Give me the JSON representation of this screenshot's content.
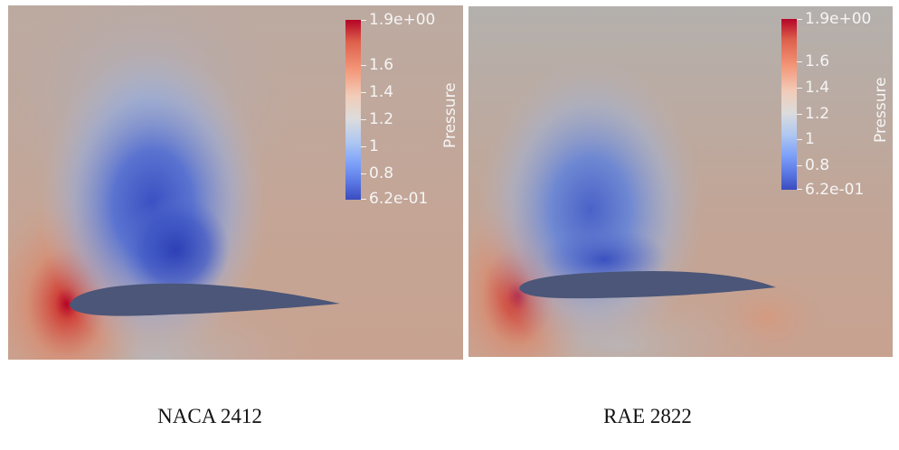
{
  "panels": [
    {
      "caption": "NACA 2412",
      "colorbar": {
        "title": "Pressure",
        "ticks": [
          "1.9e+00",
          "1.6",
          "1.4",
          "1.2",
          "1",
          "0.8",
          "6.2e-01"
        ]
      }
    },
    {
      "caption": "RAE 2822",
      "colorbar": {
        "title": "Pressure",
        "ticks": [
          "1.9e+00",
          "1.6",
          "1.4",
          "1.2",
          "1",
          "0.8",
          "6.2e-01"
        ]
      }
    }
  ],
  "colors": {
    "background_field": "#c4a89a",
    "high_pressure": "#b40426",
    "low_pressure": "#3b4cc0",
    "airfoil": "#4b5678"
  }
}
